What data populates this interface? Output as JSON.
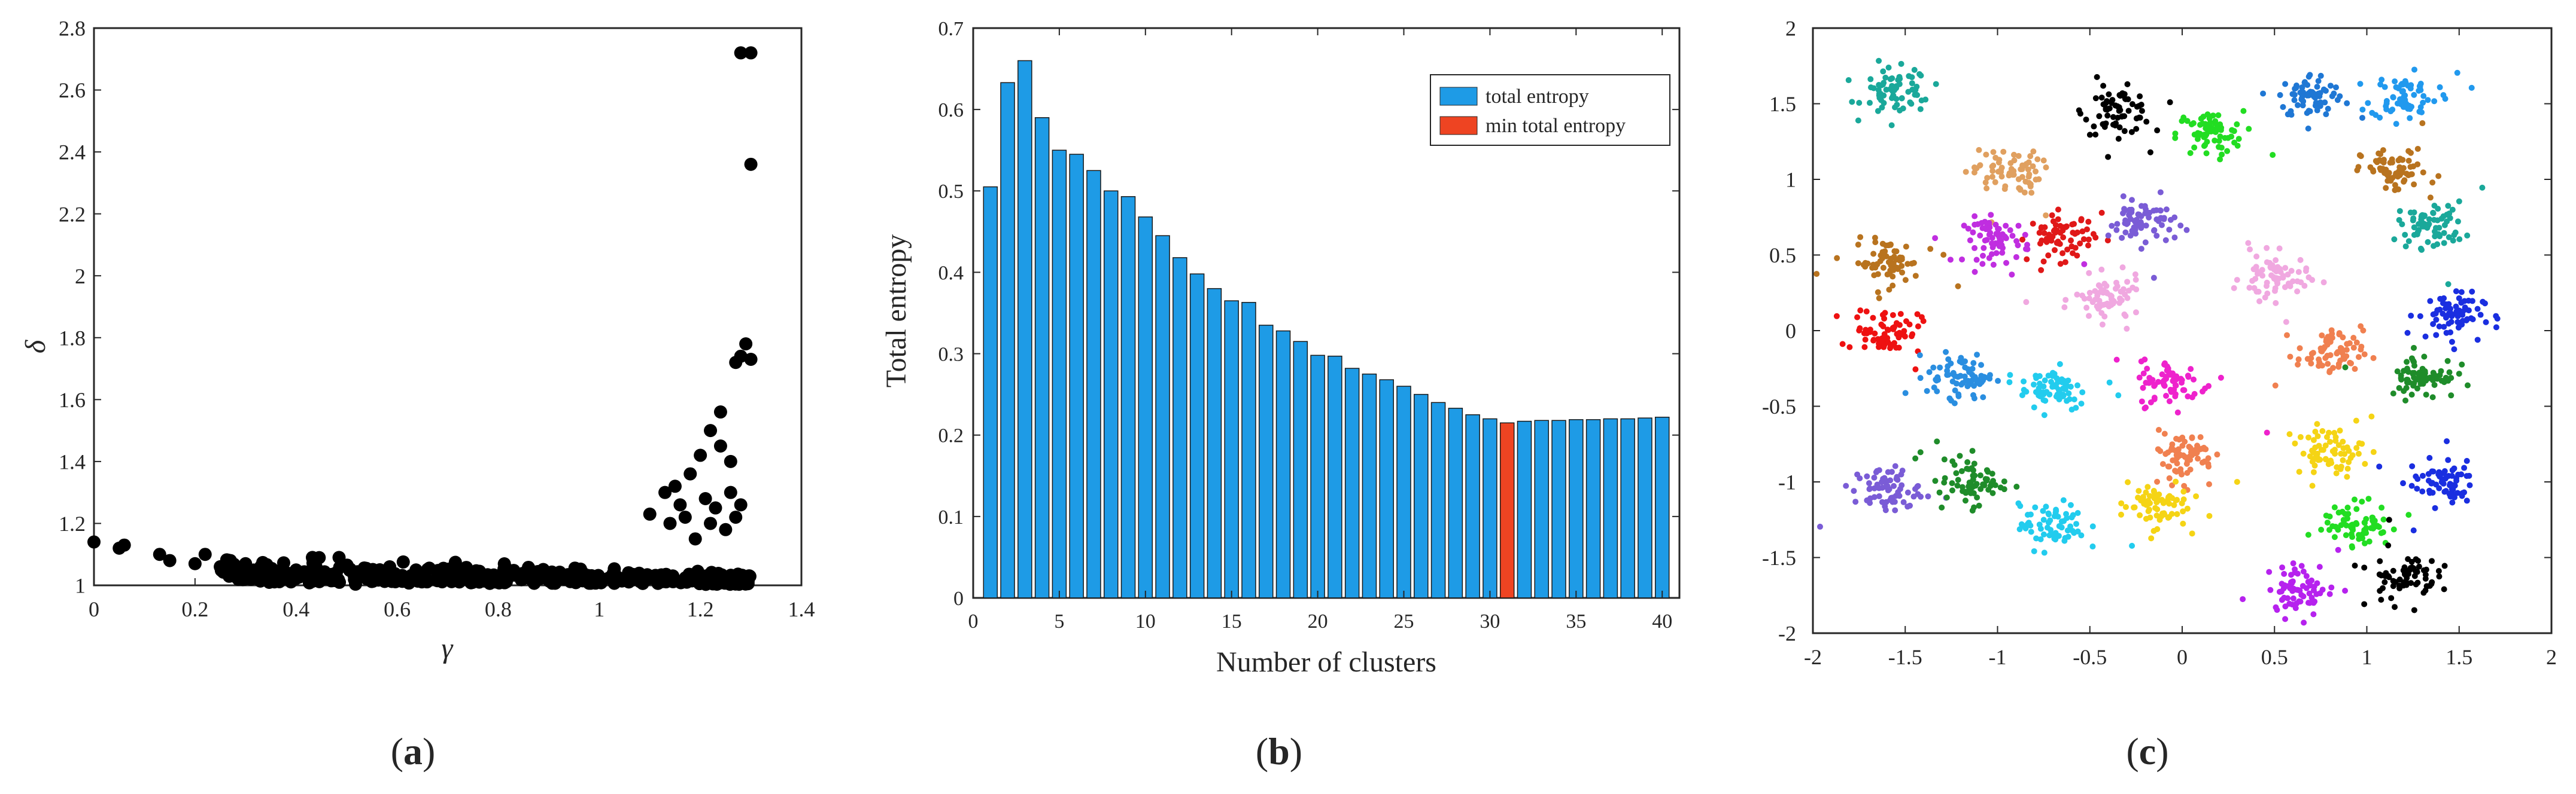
{
  "panels": [
    {
      "caption": "(a)",
      "letter": "a"
    },
    {
      "caption": "(b)",
      "letter": "b"
    },
    {
      "caption": "(c)",
      "letter": "c"
    }
  ],
  "chart_data": [
    {
      "id": "a",
      "type": "scatter",
      "title": "",
      "xlabel": "γ",
      "ylabel": "δ",
      "xlim": [
        0,
        1.4
      ],
      "ylim": [
        1,
        2.8
      ],
      "xticks": [
        0,
        0.2,
        0.4,
        0.6,
        0.8,
        1,
        1.2,
        1.4
      ],
      "yticks": [
        1,
        1.2,
        1.4,
        1.6,
        1.8,
        2,
        2.2,
        2.4,
        2.6,
        2.8
      ],
      "xtick_labels": [
        "0",
        "0.2",
        "0.4",
        "0.6",
        "0.8",
        "1",
        "1.2",
        "1.4"
      ],
      "ytick_labels": [
        "1",
        "1.2",
        "1.4",
        "1.6",
        "1.8",
        "2",
        "2.2",
        "2.4",
        "2.6",
        "2.8"
      ],
      "color": "#000000",
      "outliers": [
        [
          0.0,
          1.14
        ],
        [
          0.05,
          1.12
        ],
        [
          0.06,
          1.13
        ],
        [
          0.13,
          1.1
        ],
        [
          0.15,
          1.08
        ],
        [
          0.2,
          1.07
        ],
        [
          0.22,
          1.1
        ],
        [
          0.25,
          1.06
        ],
        [
          0.27,
          1.08
        ],
        [
          0.3,
          1.07
        ],
        [
          0.33,
          1.06
        ],
        [
          1.1,
          1.23
        ],
        [
          1.13,
          1.3
        ],
        [
          1.14,
          1.2
        ],
        [
          1.15,
          1.32
        ],
        [
          1.16,
          1.26
        ],
        [
          1.17,
          1.22
        ],
        [
          1.18,
          1.36
        ],
        [
          1.19,
          1.15
        ],
        [
          1.2,
          1.42
        ],
        [
          1.21,
          1.28
        ],
        [
          1.22,
          1.5
        ],
        [
          1.22,
          1.2
        ],
        [
          1.23,
          1.25
        ],
        [
          1.24,
          1.45
        ],
        [
          1.24,
          1.56
        ],
        [
          1.25,
          1.18
        ],
        [
          1.26,
          1.3
        ],
        [
          1.26,
          1.4
        ],
        [
          1.27,
          1.22
        ],
        [
          1.27,
          1.72
        ],
        [
          1.28,
          1.26
        ],
        [
          1.28,
          1.74
        ],
        [
          1.29,
          1.78
        ],
        [
          1.3,
          1.73
        ],
        [
          1.28,
          2.72
        ],
        [
          1.3,
          2.72
        ],
        [
          1.3,
          2.36
        ]
      ]
    },
    {
      "id": "b",
      "type": "bar",
      "title": "",
      "xlabel": "Number of clusters",
      "ylabel": "Total entropy",
      "xlim": [
        0,
        41
      ],
      "ylim": [
        0,
        0.7
      ],
      "xticks": [
        0,
        5,
        10,
        15,
        20,
        25,
        30,
        35,
        40
      ],
      "yticks": [
        0,
        0.1,
        0.2,
        0.3,
        0.4,
        0.5,
        0.6,
        0.7
      ],
      "xtick_labels": [
        "0",
        "5",
        "10",
        "15",
        "20",
        "25",
        "30",
        "35",
        "40"
      ],
      "ytick_labels": [
        "0",
        "0.1",
        "0.2",
        "0.3",
        "0.4",
        "0.5",
        "0.6",
        "0.7"
      ],
      "categories": [
        1,
        2,
        3,
        4,
        5,
        6,
        7,
        8,
        9,
        10,
        11,
        12,
        13,
        14,
        15,
        16,
        17,
        18,
        19,
        20,
        21,
        22,
        23,
        24,
        25,
        26,
        27,
        28,
        29,
        30,
        31,
        32,
        33,
        34,
        35,
        36,
        37,
        38,
        39,
        40
      ],
      "values": [
        0.505,
        0.633,
        0.66,
        0.59,
        0.55,
        0.545,
        0.525,
        0.5,
        0.493,
        0.468,
        0.445,
        0.418,
        0.398,
        0.38,
        0.365,
        0.363,
        0.335,
        0.328,
        0.315,
        0.298,
        0.297,
        0.282,
        0.275,
        0.268,
        0.26,
        0.25,
        0.24,
        0.233,
        0.225,
        0.22,
        0.215,
        0.217,
        0.218,
        0.218,
        0.219,
        0.219,
        0.22,
        0.22,
        0.221,
        0.222
      ],
      "highlight_index": 30,
      "bar_color": "#1e9be6",
      "highlight_color": "#ee4422",
      "legend": [
        {
          "label": "total entropy",
          "color": "#1e9be6"
        },
        {
          "label": "min total entropy",
          "color": "#ee4422"
        }
      ],
      "legend_position": "top-right"
    },
    {
      "id": "c",
      "type": "scatter",
      "title": "",
      "xlabel": "",
      "ylabel": "",
      "xlim": [
        -2,
        2
      ],
      "ylim": [
        -2,
        2
      ],
      "xticks": [
        -2,
        -1.5,
        -1,
        -0.5,
        0,
        0.5,
        1,
        1.5,
        2
      ],
      "yticks": [
        -2,
        -1.5,
        -1,
        -0.5,
        0,
        0.5,
        1,
        1.5,
        2
      ],
      "xtick_labels": [
        "-2",
        "-1.5",
        "-1",
        "-0.5",
        "0",
        "0.5",
        "1",
        "1.5",
        "2"
      ],
      "ytick_labels": [
        "-2",
        "-1.5",
        "-1",
        "-0.5",
        "0",
        "0.5",
        "1",
        "1.5",
        "2"
      ],
      "points_per_cluster": 70,
      "clusters": [
        {
          "center": [
            -1.55,
            1.58
          ],
          "color": "#1aa89a"
        },
        {
          "center": [
            -0.35,
            1.45
          ],
          "color": "#000000"
        },
        {
          "center": [
            0.15,
            1.3
          ],
          "color": "#22dd22"
        },
        {
          "center": [
            0.7,
            1.55
          ],
          "color": "#1f77d4"
        },
        {
          "center": [
            1.2,
            1.55
          ],
          "color": "#2199ee"
        },
        {
          "center": [
            -0.95,
            1.05
          ],
          "color": "#e0a060"
        },
        {
          "center": [
            1.15,
            1.05
          ],
          "color": "#b8731f"
        },
        {
          "center": [
            1.35,
            0.7
          ],
          "color": "#1aa89a"
        },
        {
          "center": [
            -1.6,
            0.45
          ],
          "color": "#b8731f"
        },
        {
          "center": [
            -1.0,
            0.6
          ],
          "color": "#c02ee0"
        },
        {
          "center": [
            -0.65,
            0.62
          ],
          "color": "#e01818"
        },
        {
          "center": [
            -0.22,
            0.72
          ],
          "color": "#7a5cd6"
        },
        {
          "center": [
            -0.4,
            0.2
          ],
          "color": "#f0a8e0"
        },
        {
          "center": [
            0.5,
            0.35
          ],
          "color": "#f0a8e0"
        },
        {
          "center": [
            -1.6,
            0.0
          ],
          "color": "#ee1111"
        },
        {
          "center": [
            1.45,
            0.1
          ],
          "color": "#1a2ee0"
        },
        {
          "center": [
            0.8,
            -0.15
          ],
          "color": "#f08050"
        },
        {
          "center": [
            -1.2,
            -0.3
          ],
          "color": "#2a8ee0"
        },
        {
          "center": [
            -0.7,
            -0.38
          ],
          "color": "#22ccee"
        },
        {
          "center": [
            -0.05,
            -0.35
          ],
          "color": "#ee22cc"
        },
        {
          "center": [
            1.3,
            -0.3
          ],
          "color": "#1f8c2a"
        },
        {
          "center": [
            0.0,
            -0.82
          ],
          "color": "#f08050"
        },
        {
          "center": [
            0.8,
            -0.8
          ],
          "color": "#f5d415"
        },
        {
          "center": [
            -1.6,
            -1.05
          ],
          "color": "#7a5cd6"
        },
        {
          "center": [
            -1.15,
            -1.0
          ],
          "color": "#1f8c2a"
        },
        {
          "center": [
            -0.15,
            -1.15
          ],
          "color": "#f5d415"
        },
        {
          "center": [
            1.4,
            -1.0
          ],
          "color": "#1a2ee0"
        },
        {
          "center": [
            -0.7,
            -1.3
          ],
          "color": "#22ccee"
        },
        {
          "center": [
            0.95,
            -1.28
          ],
          "color": "#22dd22"
        },
        {
          "center": [
            0.65,
            -1.7
          ],
          "color": "#b622ee"
        },
        {
          "center": [
            1.2,
            -1.62
          ],
          "color": "#000000"
        }
      ]
    }
  ]
}
